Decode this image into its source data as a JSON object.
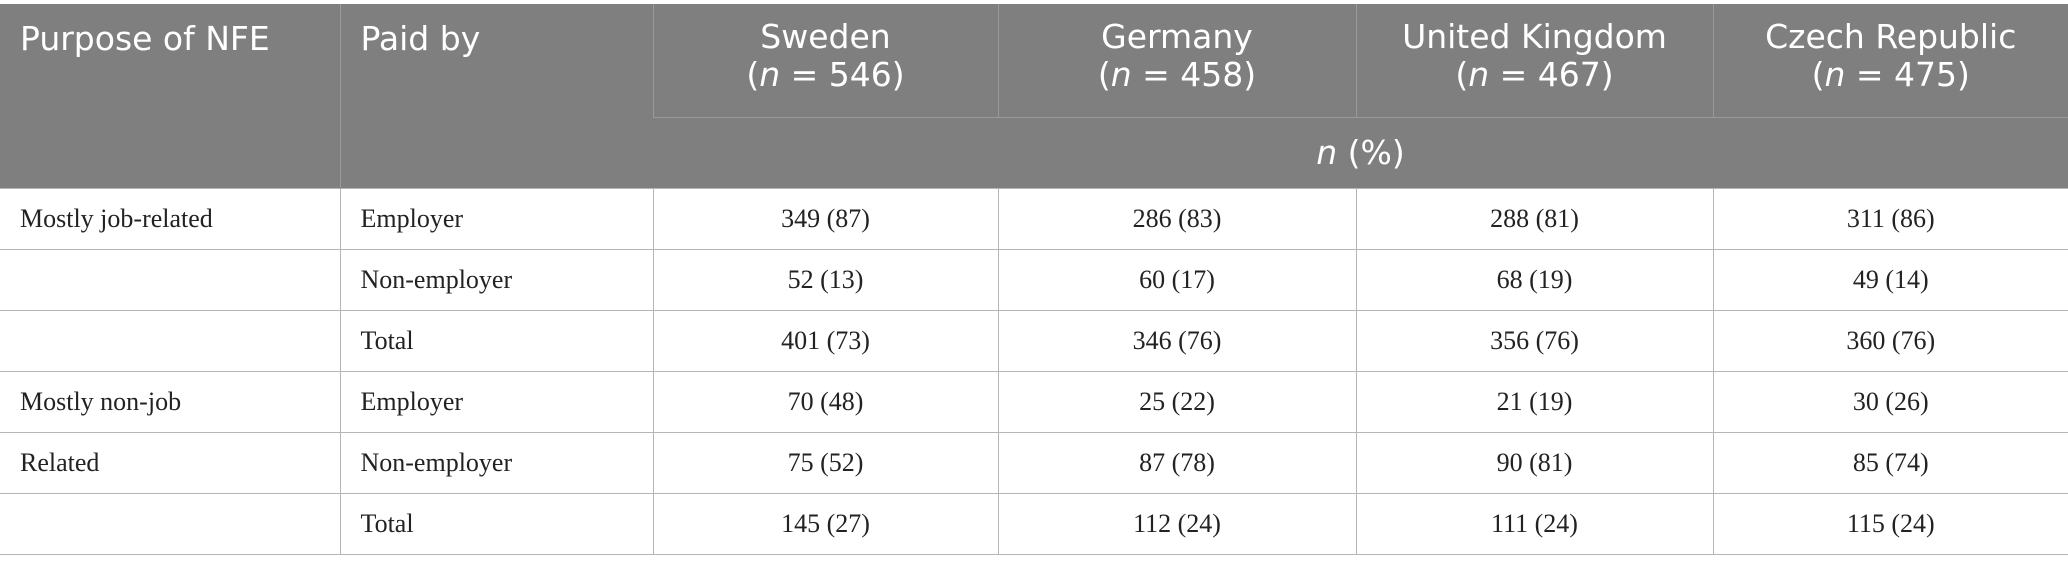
{
  "header": {
    "columns": [
      {
        "name": "Purpose of NFE"
      },
      {
        "name": "Paid by"
      },
      {
        "name": "Sweden",
        "sample": [
          "(",
          "n",
          " = 546)"
        ]
      },
      {
        "name": "Germany",
        "sample": [
          "(",
          "n",
          " = 458)"
        ]
      },
      {
        "name": "United Kingdom",
        "sample": [
          "(",
          "n",
          " = 467)"
        ]
      },
      {
        "name": "Czech Republic",
        "sample": [
          "(",
          "n",
          " = 475)"
        ]
      }
    ],
    "unit": [
      "n",
      " (%)"
    ]
  },
  "table": {
    "rows": [
      [
        "Mostly job-related",
        "Employer",
        "349 (87)",
        "286 (83)",
        "288 (81)",
        "311 (86)"
      ],
      [
        null,
        "Non-employer",
        "52 (13)",
        "60 (17)",
        "68 (19)",
        "49 (14)"
      ],
      [
        null,
        "Total",
        "401 (73)",
        "346 (76)",
        "356 (76)",
        "360 (76)"
      ],
      [
        "Mostly non-job",
        "Employer",
        "70 (48)",
        "25 (22)",
        "21 (19)",
        "30 (26)"
      ],
      [
        "Related",
        "Non-employer",
        "75 (52)",
        "87 (78)",
        "90 (81)",
        "85 (74)"
      ],
      [
        null,
        "Total",
        "145 (27)",
        "112 (24)",
        "111 (24)",
        "115 (24)"
      ]
    ]
  }
}
